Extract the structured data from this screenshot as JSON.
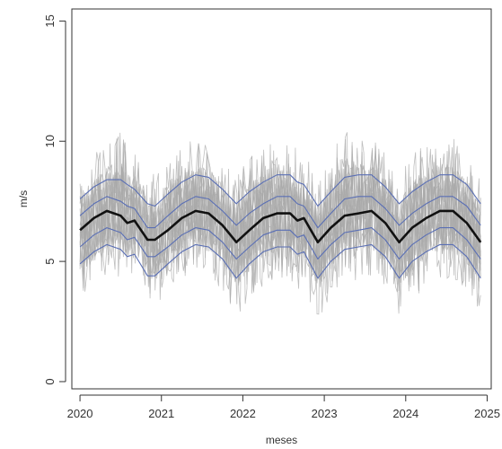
{
  "chart_data": {
    "type": "line",
    "title": "",
    "xlabel": "meses",
    "ylabel": "m/s",
    "xlim": [
      2019.9,
      2025.05
    ],
    "ylim": [
      -0.3,
      15.5
    ],
    "grid": false,
    "legend": "none",
    "x_ticks": [
      2020,
      2021,
      2022,
      2023,
      2024,
      2025
    ],
    "x_tick_labels": [
      "2020",
      "2021",
      "2022",
      "2023",
      "2024",
      "2025"
    ],
    "y_ticks": [
      0,
      5,
      10,
      15
    ],
    "y_tick_labels": [
      "0",
      "5",
      "10",
      "15"
    ],
    "colors": {
      "mean": "#111111",
      "bands": "#5a6fb5",
      "ensemble": "#a9a9a9",
      "axes": "#333333"
    },
    "x": [
      2020.0,
      2020.17,
      2020.33,
      2020.5,
      2020.58,
      2020.67,
      2020.83,
      2020.92,
      2021.08,
      2021.25,
      2021.42,
      2021.58,
      2021.75,
      2021.92,
      2022.08,
      2022.25,
      2022.42,
      2022.58,
      2022.67,
      2022.75,
      2022.92,
      2023.08,
      2023.25,
      2023.42,
      2023.58,
      2023.75,
      2023.92,
      2024.08,
      2024.25,
      2024.42,
      2024.58,
      2024.75,
      2024.92
    ],
    "series": [
      {
        "role": "upper-band",
        "values": [
          7.6,
          8.1,
          8.4,
          8.4,
          8.2,
          8.0,
          7.4,
          7.3,
          7.8,
          8.3,
          8.6,
          8.5,
          8.0,
          7.4,
          7.9,
          8.3,
          8.6,
          8.6,
          8.3,
          8.2,
          7.3,
          7.9,
          8.5,
          8.6,
          8.6,
          8.1,
          7.4,
          7.9,
          8.3,
          8.6,
          8.6,
          8.2,
          7.4
        ]
      },
      {
        "role": "upper-mid-band",
        "values": [
          6.9,
          7.4,
          7.7,
          7.5,
          7.3,
          7.2,
          6.4,
          6.4,
          6.9,
          7.4,
          7.7,
          7.6,
          7.1,
          6.5,
          7.0,
          7.4,
          7.7,
          7.7,
          7.4,
          7.3,
          6.4,
          7.0,
          7.6,
          7.7,
          7.7,
          7.2,
          6.5,
          7.0,
          7.4,
          7.7,
          7.7,
          7.3,
          6.5
        ]
      },
      {
        "role": "mean",
        "values": [
          6.3,
          6.8,
          7.1,
          6.9,
          6.6,
          6.7,
          5.9,
          5.9,
          6.3,
          6.8,
          7.1,
          7.0,
          6.5,
          5.8,
          6.3,
          6.8,
          7.0,
          7.0,
          6.7,
          6.8,
          5.8,
          6.4,
          6.9,
          7.0,
          7.1,
          6.6,
          5.8,
          6.4,
          6.8,
          7.1,
          7.1,
          6.6,
          5.8
        ]
      },
      {
        "role": "lower-mid-band",
        "values": [
          5.6,
          6.1,
          6.4,
          6.2,
          5.9,
          6.0,
          5.2,
          5.2,
          5.6,
          6.1,
          6.4,
          6.3,
          5.8,
          5.1,
          5.6,
          6.1,
          6.3,
          6.3,
          6.0,
          6.1,
          5.1,
          5.7,
          6.2,
          6.3,
          6.4,
          5.9,
          5.1,
          5.7,
          6.1,
          6.4,
          6.4,
          5.9,
          5.1
        ]
      },
      {
        "role": "lower-band",
        "values": [
          4.9,
          5.4,
          5.7,
          5.5,
          5.2,
          5.3,
          4.4,
          4.4,
          4.9,
          5.4,
          5.7,
          5.6,
          5.1,
          4.3,
          4.9,
          5.4,
          5.6,
          5.6,
          5.3,
          5.4,
          4.3,
          5.0,
          5.5,
          5.6,
          5.7,
          5.2,
          4.3,
          5.0,
          5.4,
          5.7,
          5.7,
          5.2,
          4.3
        ]
      }
    ],
    "ensemble_envelope": {
      "upper": [
        8.9,
        9.7,
        10.1,
        10.5,
        9.9,
        9.6,
        8.9,
        8.7,
        9.5,
        10.0,
        10.3,
        10.0,
        9.6,
        8.6,
        9.4,
        10.0,
        10.3,
        10.2,
        9.8,
        9.6,
        8.6,
        9.6,
        10.8,
        10.3,
        10.2,
        9.7,
        8.6,
        9.6,
        10.1,
        10.4,
        10.2,
        9.6,
        8.7
      ],
      "lower": [
        3.5,
        3.8,
        4.3,
        4.3,
        4.0,
        4.2,
        3.2,
        3.1,
        3.6,
        4.1,
        4.4,
        4.2,
        3.8,
        2.6,
        3.4,
        3.9,
        4.2,
        4.2,
        3.8,
        3.8,
        2.5,
        3.4,
        4.0,
        4.2,
        4.3,
        3.8,
        2.7,
        3.3,
        3.9,
        4.2,
        4.2,
        3.7,
        2.8
      ]
    }
  }
}
